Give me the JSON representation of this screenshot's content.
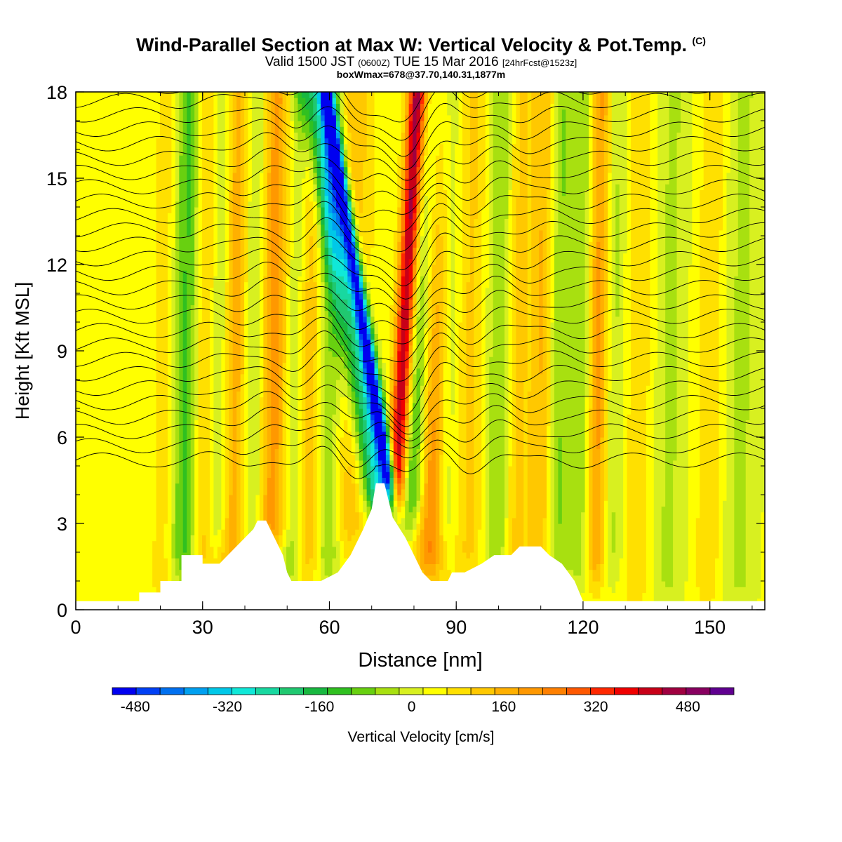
{
  "chart_data": {
    "type": "heatmap",
    "title": "Wind-Parallel Section at Max W: Vertical Velocity & Pot.Temp.",
    "title_mark": "(C)",
    "subtitle_main": "Valid 1500 JST",
    "subtitle_utc": "(0600Z)",
    "subtitle_date": "TUE 15 Mar 2016",
    "subtitle_fcst": "[24hrFcst@1523z]",
    "subtitle2": "boxWmax=678@37.70,140.31,1877m",
    "xlabel": "Distance [nm]",
    "ylabel": "Height [Kft MSL]",
    "xlim": [
      0,
      163
    ],
    "ylim": [
      0,
      18
    ],
    "xticks": [
      0,
      30,
      60,
      90,
      120,
      150
    ],
    "yticks": [
      0,
      3,
      6,
      9,
      12,
      15,
      18
    ],
    "colorbar": {
      "label": "Vertical Velocity [cm/s]",
      "min": -520,
      "max": 560,
      "step": 40,
      "tick_values": [
        -480,
        -320,
        -160,
        0,
        160,
        320,
        480
      ],
      "tick_labels": [
        "-480",
        "-320",
        "-160",
        "0",
        "160",
        "320",
        "480"
      ],
      "colors": [
        "#0000f0",
        "#0040f5",
        "#0070f0",
        "#00a0f0",
        "#00c8e8",
        "#10e8d8",
        "#18d8a0",
        "#20c870",
        "#18b840",
        "#30c020",
        "#68d010",
        "#a8e010",
        "#d8f020",
        "#ffff00",
        "#ffe000",
        "#ffc800",
        "#ffb000",
        "#ff9800",
        "#ff8000",
        "#ff5800",
        "#ff2800",
        "#f00000",
        "#c80018",
        "#a00040",
        "#880060",
        "#600090"
      ]
    },
    "terrain_profile": [
      [
        0,
        0.3
      ],
      [
        15,
        0.3
      ],
      [
        15,
        0.6
      ],
      [
        20,
        0.6
      ],
      [
        20,
        1.0
      ],
      [
        25,
        1.0
      ],
      [
        25,
        1.9
      ],
      [
        30,
        1.9
      ],
      [
        30,
        1.6
      ],
      [
        34,
        1.6
      ],
      [
        38,
        2.2
      ],
      [
        40,
        2.5
      ],
      [
        42,
        2.8
      ],
      [
        43,
        3.1
      ],
      [
        45,
        3.1
      ],
      [
        47,
        2.5
      ],
      [
        49,
        1.9
      ],
      [
        50,
        1.3
      ],
      [
        51,
        1.0
      ],
      [
        58,
        1.0
      ],
      [
        62,
        1.3
      ],
      [
        65,
        1.9
      ],
      [
        68,
        2.8
      ],
      [
        70,
        3.5
      ],
      [
        71,
        4.4
      ],
      [
        73,
        4.4
      ],
      [
        74,
        3.8
      ],
      [
        75,
        3.2
      ],
      [
        78,
        2.5
      ],
      [
        80,
        1.9
      ],
      [
        82,
        1.3
      ],
      [
        84,
        1.0
      ],
      [
        88,
        1.0
      ],
      [
        89,
        1.3
      ],
      [
        92,
        1.3
      ],
      [
        96,
        1.6
      ],
      [
        99,
        1.9
      ],
      [
        103,
        1.9
      ],
      [
        105,
        2.2
      ],
      [
        110,
        2.2
      ],
      [
        112,
        1.9
      ],
      [
        115,
        1.6
      ],
      [
        118,
        1.0
      ],
      [
        120,
        0.3
      ],
      [
        163,
        0.3
      ]
    ],
    "vertical_velocity_bands": [
      {
        "x": 8,
        "w": 5,
        "v": 30,
        "z0": 8
      },
      {
        "x": 21,
        "w": 2,
        "v": 60,
        "z0": 1
      },
      {
        "x": 26,
        "w": 2.5,
        "v": -150,
        "z0": 2
      },
      {
        "x": 30,
        "w": 2,
        "v": 120,
        "z0": 2
      },
      {
        "x": 34,
        "w": 2,
        "v": -120,
        "z0": 3
      },
      {
        "x": 37,
        "w": 2.5,
        "v": 160,
        "z0": 2
      },
      {
        "x": 42,
        "w": 2,
        "v": -120,
        "z0": 3
      },
      {
        "x": 47,
        "w": 3,
        "v": 200,
        "z0": 3
      },
      {
        "x": 51,
        "w": 2.5,
        "v": -120,
        "z0": 2
      },
      {
        "x": 55,
        "w": 2,
        "v": 120,
        "z0": 2
      },
      {
        "x": 60,
        "w": 2,
        "v": -100,
        "z0": 2
      },
      {
        "x": 65,
        "w": 3,
        "v": 100,
        "z0": 3
      },
      {
        "x": 71,
        "w": 2.5,
        "v": -300,
        "z0": 4
      },
      {
        "x": 74,
        "w": 1.2,
        "v": -480,
        "z0": 4.5
      },
      {
        "x": 76,
        "w": 1.5,
        "v": 400,
        "z0": 4
      },
      {
        "x": 80,
        "w": 2,
        "v": -200,
        "z0": 4
      },
      {
        "x": 84,
        "w": 2.5,
        "v": 200,
        "z0": 2
      },
      {
        "x": 88,
        "w": 2,
        "v": -80,
        "z0": 3
      },
      {
        "x": 93,
        "w": 3,
        "v": 80,
        "z0": 2
      },
      {
        "x": 100,
        "w": 2.5,
        "v": -100,
        "z0": 2
      },
      {
        "x": 104,
        "w": 2,
        "v": 100,
        "z0": 2
      },
      {
        "x": 110,
        "w": 2,
        "v": 120,
        "z0": 2
      },
      {
        "x": 114,
        "w": 2,
        "v": -100,
        "z0": 2
      },
      {
        "x": 120,
        "w": 2,
        "v": -120,
        "z0": 2
      },
      {
        "x": 123,
        "w": 2,
        "v": 200,
        "z0": 2
      },
      {
        "x": 127,
        "w": 2,
        "v": -80,
        "z0": 2
      },
      {
        "x": 133,
        "w": 3,
        "v": 60,
        "z0": 1
      },
      {
        "x": 140,
        "w": 3,
        "v": -60,
        "z0": 1
      },
      {
        "x": 150,
        "w": 2.5,
        "v": 60,
        "z0": 1
      },
      {
        "x": 157,
        "w": 3,
        "v": -60,
        "z0": 1
      }
    ],
    "theta_contours": {
      "base_height_kft": 5.2,
      "spacing_kft": 0.5,
      "count": 27,
      "wave_center_x": 74,
      "wave_amplitude_kft": 1.2
    }
  }
}
